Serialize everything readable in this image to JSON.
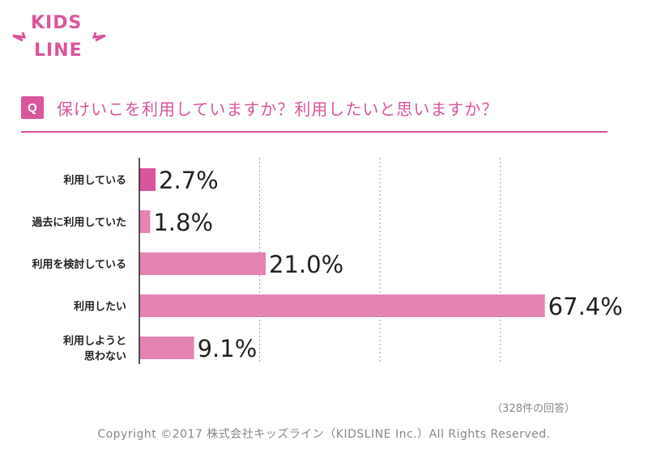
{
  "logo": {
    "line1": "KIDS",
    "line2": "LINE"
  },
  "question": {
    "badge": "Q",
    "text": "保けいこを利用していますか？利用したいと思いますか？"
  },
  "chart_data": {
    "type": "bar",
    "orientation": "horizontal",
    "categories": [
      "利用している",
      "過去に利用していた",
      "利用を検討している",
      "利用したい",
      "利用しようと思わない"
    ],
    "category_lines": [
      [
        "利用している"
      ],
      [
        "過去に利用していた"
      ],
      [
        "利用を検討している"
      ],
      [
        "利用したい"
      ],
      [
        "利用しようと",
        "思わない"
      ]
    ],
    "values": [
      2.7,
      1.8,
      21.0,
      67.4,
      9.1
    ],
    "labels": [
      "2.7%",
      "1.8%",
      "21.0%",
      "67.4%",
      "9.1%"
    ],
    "xlim": [
      0,
      70
    ],
    "grid_at": [
      20,
      40,
      60
    ],
    "unit": "%",
    "bar_colors": [
      "#d9559c",
      "#e384b3",
      "#e384b3",
      "#e384b3",
      "#e384b3"
    ]
  },
  "footnote": "（328件の回答）",
  "copyright": "Copyright ©2017 株式会社キッズライン（KIDSLINE Inc.）All Rights Reserved."
}
